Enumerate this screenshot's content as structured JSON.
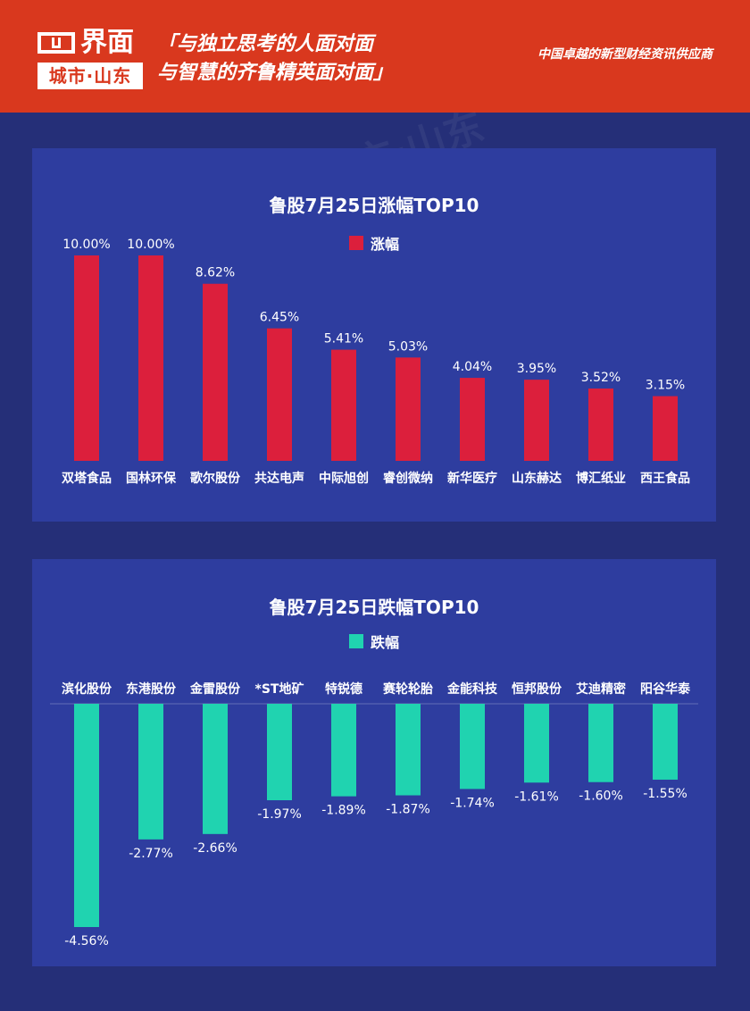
{
  "header": {
    "logo_text": "界面",
    "logo_sub": "城市·山东",
    "slogan_line1": "「与独立思考的人面对面",
    "slogan_line2": "与智慧的齐鲁精英面对面」",
    "tagline": "中国卓越的新型财经资讯供应商"
  },
  "colors": {
    "header_bg": "#d9381e",
    "page_bg": "#252f78",
    "panel_bg": "#2e3d9f",
    "gain_bar": "#dc1f3c",
    "loss_bar": "#20d3b0"
  },
  "chart_data": [
    {
      "type": "bar",
      "title": "鲁股7月25日涨幅TOP10",
      "legend": "涨幅",
      "categories": [
        "双塔食品",
        "国林环保",
        "歌尔股份",
        "共达电声",
        "中际旭创",
        "睿创微纳",
        "新华医疗",
        "山东赫达",
        "博汇纸业",
        "西王食品"
      ],
      "values": [
        10.0,
        10.0,
        8.62,
        6.45,
        5.41,
        5.03,
        4.04,
        3.95,
        3.52,
        3.15
      ],
      "labels": [
        "10.00%",
        "10.00%",
        "8.62%",
        "6.45%",
        "5.41%",
        "5.03%",
        "4.04%",
        "3.95%",
        "3.52%",
        "3.15%"
      ],
      "unit": "%"
    },
    {
      "type": "bar",
      "title": "鲁股7月25日跌幅TOP10",
      "legend": "跌幅",
      "categories": [
        "滨化股份",
        "东港股份",
        "金雷股份",
        "*ST地矿",
        "特锐德",
        "赛轮轮胎",
        "金能科技",
        "恒邦股份",
        "艾迪精密",
        "阳谷华泰"
      ],
      "values": [
        -4.56,
        -2.77,
        -2.66,
        -1.97,
        -1.89,
        -1.87,
        -1.74,
        -1.61,
        -1.6,
        -1.55
      ],
      "labels": [
        "-4.56%",
        "-2.77%",
        "-2.66%",
        "-1.97%",
        "-1.89%",
        "-1.87%",
        "-1.74%",
        "-1.61%",
        "-1.60%",
        "-1.55%"
      ],
      "unit": "%"
    }
  ],
  "watermark_text": "界面 城市·山东"
}
